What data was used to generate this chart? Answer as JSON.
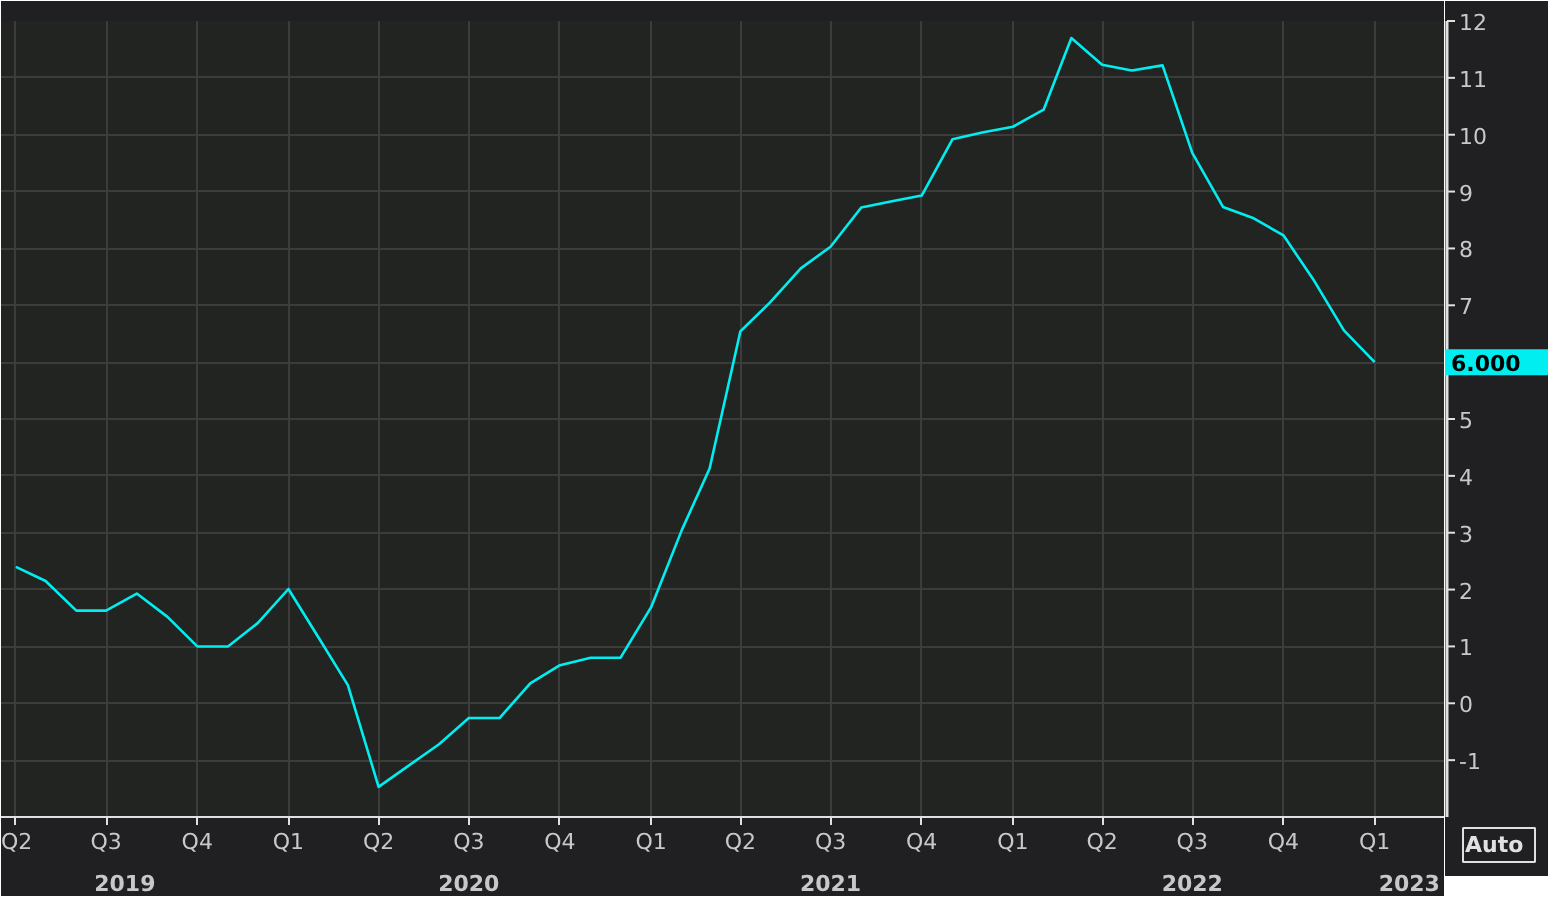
{
  "chart_data": {
    "type": "line",
    "x": [
      "2019-04",
      "2019-05",
      "2019-06",
      "2019-07",
      "2019-08",
      "2019-09",
      "2019-10",
      "2019-11",
      "2019-12",
      "2020-01",
      "2020-02",
      "2020-03",
      "2020-04",
      "2020-05",
      "2020-06",
      "2020-07",
      "2020-08",
      "2020-09",
      "2020-10",
      "2020-11",
      "2020-12",
      "2021-01",
      "2021-02",
      "2021-03",
      "2021-04",
      "2021-05",
      "2021-06",
      "2021-07",
      "2021-08",
      "2021-09",
      "2021-10",
      "2021-11",
      "2021-12",
      "2022-01",
      "2022-02",
      "2022-03",
      "2022-04",
      "2022-05",
      "2022-06",
      "2022-07",
      "2022-08",
      "2022-09",
      "2022-10",
      "2022-11",
      "2022-12",
      "2023-01"
    ],
    "series": [
      {
        "color": "#00eef0",
        "values": [
          2.4,
          2.15,
          1.63,
          1.63,
          1.93,
          1.52,
          1.0,
          1.0,
          1.41,
          2.01,
          1.14,
          0.32,
          -1.47,
          -1.1,
          -0.72,
          -0.26,
          -0.26,
          0.35,
          0.67,
          0.8,
          0.8,
          1.69,
          3.05,
          4.13,
          6.54,
          7.05,
          7.65,
          8.03,
          8.72,
          8.83,
          8.93,
          9.92,
          10.04,
          10.14,
          10.44,
          11.7,
          11.23,
          11.13,
          11.22,
          9.68,
          8.73,
          8.53,
          8.23,
          7.43,
          6.56,
          6.0
        ]
      }
    ],
    "xlim": [
      "2019-03-17",
      "2023-03-13"
    ],
    "xticks": [
      {
        "value": "2019-04-01",
        "label": "Q2"
      },
      {
        "value": "2019-07-01",
        "label": "Q3"
      },
      {
        "value": "2019-10-01",
        "label": "Q4"
      },
      {
        "value": "2020-01-01",
        "label": "Q1"
      },
      {
        "value": "2020-04-01",
        "label": "Q2"
      },
      {
        "value": "2020-07-01",
        "label": "Q3"
      },
      {
        "value": "2020-10-01",
        "label": "Q4"
      },
      {
        "value": "2021-01-01",
        "label": "Q1"
      },
      {
        "value": "2021-04-01",
        "label": "Q2"
      },
      {
        "value": "2021-07-01",
        "label": "Q3"
      },
      {
        "value": "2021-10-01",
        "label": "Q4"
      },
      {
        "value": "2022-01-01",
        "label": "Q1"
      },
      {
        "value": "2022-04-01",
        "label": "Q2"
      },
      {
        "value": "2022-07-01",
        "label": "Q3"
      },
      {
        "value": "2022-10-01",
        "label": "Q4"
      },
      {
        "value": "2023-01-01",
        "label": "Q1"
      }
    ],
    "x2ticks": [
      {
        "value": "2019-07-20",
        "label": "2019"
      },
      {
        "value": "2020-07-01",
        "label": "2020"
      },
      {
        "value": "2021-07-01",
        "label": "2021"
      },
      {
        "value": "2022-07-01",
        "label": "2022"
      },
      {
        "value": "2023-02-05",
        "label": "2023"
      }
    ],
    "x2lim": [
      "2019-03-17",
      "2023-03-13"
    ],
    "ylim": [
      -2,
      12
    ],
    "yticks": [
      -1,
      0,
      1,
      2,
      3,
      4,
      5,
      {
        "value": 6,
        "label": null
      },
      7,
      8,
      9,
      10,
      11,
      12
    ],
    "grid": true,
    "line_style": "solid",
    "annotations": [
      "6.000",
      "Auto"
    ]
  }
}
